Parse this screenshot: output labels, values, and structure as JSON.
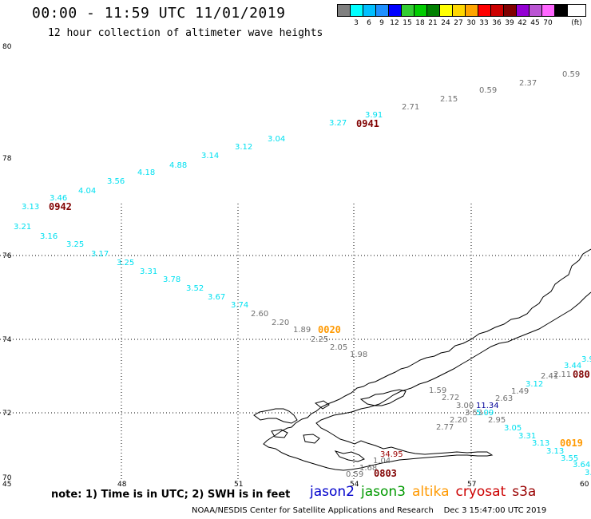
{
  "header": {
    "title": "00:00 - 11:59 UTC 11/01/2019",
    "subtitle": "12 hour collection of altimeter wave heights"
  },
  "legend": {
    "unit": "(ft)",
    "swatches": [
      {
        "label": "",
        "color": "#808080"
      },
      {
        "label": "3",
        "color": "#00ffff"
      },
      {
        "label": "6",
        "color": "#00bfff"
      },
      {
        "label": "9",
        "color": "#1e90ff"
      },
      {
        "label": "12",
        "color": "#0000ff"
      },
      {
        "label": "15",
        "color": "#32cd32"
      },
      {
        "label": "18",
        "color": "#00cc00"
      },
      {
        "label": "21",
        "color": "#008000"
      },
      {
        "label": "24",
        "color": "#ffff00"
      },
      {
        "label": "27",
        "color": "#ffd700"
      },
      {
        "label": "30",
        "color": "#ffa500"
      },
      {
        "label": "33",
        "color": "#ff0000"
      },
      {
        "label": "36",
        "color": "#cc0000"
      },
      {
        "label": "39",
        "color": "#800000"
      },
      {
        "label": "42",
        "color": "#9400d3"
      },
      {
        "label": "45",
        "color": "#ba55d3"
      },
      {
        "label": "70",
        "color": "#ff66ff"
      },
      {
        "label": "",
        "color": "#000000"
      }
    ]
  },
  "axes": {
    "lat_ticks": [
      {
        "value": 80,
        "label": "80"
      },
      {
        "value": 78,
        "label": "78"
      },
      {
        "value": 76,
        "label": "76"
      },
      {
        "value": 74,
        "label": "74"
      },
      {
        "value": 72,
        "label": "72"
      },
      {
        "value": 70,
        "label": "70"
      }
    ],
    "lon_ticks": [
      {
        "value": 45,
        "label": "45"
      },
      {
        "value": 48,
        "label": "48"
      },
      {
        "value": 51,
        "label": "51"
      },
      {
        "value": 54,
        "label": "54"
      },
      {
        "value": 57,
        "label": "57"
      },
      {
        "value": 60,
        "label": "60"
      }
    ]
  },
  "colors": {
    "cyan": "#00e0f0",
    "gray": "#707070",
    "time_red": "#800000",
    "time_orange": "#ff9900",
    "dark_blue": "#000099",
    "dark_red": "#990000",
    "coast": "#000000",
    "grid": "#000000"
  },
  "observations": [
    {
      "text": "0.59",
      "color": "gray"
    },
    {
      "text": "2.37",
      "color": "gray"
    },
    {
      "text": "0.59",
      "color": "gray"
    },
    {
      "text": "2.15",
      "color": "gray"
    },
    {
      "text": "2.71",
      "color": "gray"
    },
    {
      "text": "3.91",
      "color": "cyan"
    },
    {
      "text": "3.27",
      "color": "cyan"
    },
    {
      "text": "3.04",
      "color": "cyan"
    },
    {
      "text": "3.12",
      "color": "cyan"
    },
    {
      "text": "3.14",
      "color": "cyan"
    },
    {
      "text": "4.88",
      "color": "cyan"
    },
    {
      "text": "4.18",
      "color": "cyan"
    },
    {
      "text": "3.56",
      "color": "cyan"
    },
    {
      "text": "4.04",
      "color": "cyan"
    },
    {
      "text": "3.46",
      "color": "cyan"
    },
    {
      "text": "3.13",
      "color": "cyan"
    },
    {
      "text": "3.21",
      "color": "cyan"
    },
    {
      "text": "3.16",
      "color": "cyan"
    },
    {
      "text": "3.25",
      "color": "cyan"
    },
    {
      "text": "3.17",
      "color": "cyan"
    },
    {
      "text": "3.25",
      "color": "cyan"
    },
    {
      "text": "3.31",
      "color": "cyan"
    },
    {
      "text": "3.78",
      "color": "cyan"
    },
    {
      "text": "3.52",
      "color": "cyan"
    },
    {
      "text": "3.67",
      "color": "cyan"
    },
    {
      "text": "3.74",
      "color": "cyan"
    },
    {
      "text": "2.60",
      "color": "gray"
    },
    {
      "text": "2.20",
      "color": "gray"
    },
    {
      "text": "1.89",
      "color": "gray"
    },
    {
      "text": "2.25",
      "color": "gray"
    },
    {
      "text": "2.05",
      "color": "gray"
    },
    {
      "text": "1.98",
      "color": "gray"
    },
    {
      "text": "1.59",
      "color": "gray"
    },
    {
      "text": "2.72",
      "color": "gray"
    },
    {
      "text": "3.00",
      "color": "gray"
    },
    {
      "text": "11.34",
      "color": "dark_blue"
    },
    {
      "text": "3.53",
      "color": "gray"
    },
    {
      "text": "5.09",
      "color": "cyan"
    },
    {
      "text": "2.20",
      "color": "gray"
    },
    {
      "text": "2.77",
      "color": "gray"
    },
    {
      "text": "2.63",
      "color": "gray"
    },
    {
      "text": "1.49",
      "color": "gray"
    },
    {
      "text": "2.95",
      "color": "gray"
    },
    {
      "text": "2.41",
      "color": "gray"
    },
    {
      "text": "2.11",
      "color": "gray"
    },
    {
      "text": "3.44",
      "color": "cyan"
    },
    {
      "text": "3.12",
      "color": "cyan"
    },
    {
      "text": "3.05",
      "color": "cyan"
    },
    {
      "text": "3.31",
      "color": "cyan"
    },
    {
      "text": "3.13",
      "color": "cyan"
    },
    {
      "text": "3.13",
      "color": "cyan"
    },
    {
      "text": "3.55",
      "color": "cyan"
    },
    {
      "text": "3.64",
      "color": "cyan"
    },
    {
      "text": "3.9",
      "color": "cyan"
    },
    {
      "text": "3.",
      "color": "cyan"
    },
    {
      "text": "34.95",
      "color": "dark_red"
    },
    {
      "text": "1.04",
      "color": "gray"
    },
    {
      "text": "1.68",
      "color": "gray"
    },
    {
      "text": "0.59",
      "color": "gray"
    }
  ],
  "time_labels": [
    {
      "text": "0941",
      "color": "time_red"
    },
    {
      "text": "0942",
      "color": "time_red"
    },
    {
      "text": "0020",
      "color": "time_orange"
    },
    {
      "text": "0803",
      "color": "time_red"
    },
    {
      "text": "0019",
      "color": "time_orange"
    },
    {
      "text": "080",
      "color": "time_red"
    }
  ],
  "footer": {
    "note": "note: 1) Time is in UTC; 2) SWH is in feet",
    "satellites": [
      {
        "name": "jason2",
        "color": "#0000cc"
      },
      {
        "name": "jason3",
        "color": "#009900"
      },
      {
        "name": "altika",
        "color": "#ff9900"
      },
      {
        "name": "cryosat",
        "color": "#cc0000"
      },
      {
        "name": "s3a",
        "color": "#990000"
      }
    ],
    "credit": "NOAA/NESDIS Center for Satellite Applications and Research",
    "timestamp": "Dec  3 15:47:00 UTC 2019"
  }
}
